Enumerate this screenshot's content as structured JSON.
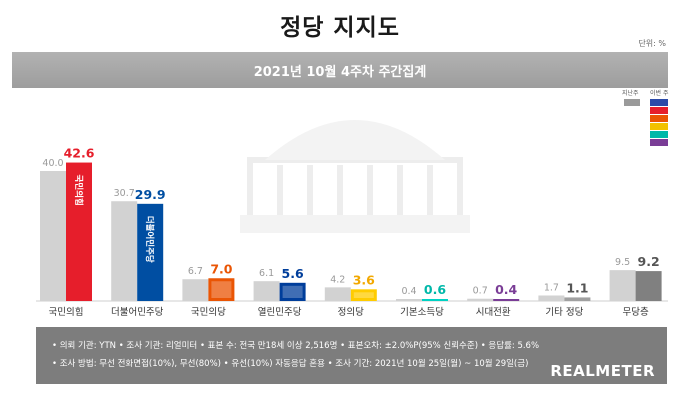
{
  "header": {
    "title": "정당 지지도",
    "unit": "단위: %",
    "subtitle": "2021년 10월 4주차 주간집계"
  },
  "legend": {
    "prev_label": "지난주",
    "curr_label": "이번 주"
  },
  "chart_data": {
    "type": "bar",
    "title": "정당 지지도",
    "subtitle": "2021년 10월 4주차 주간집계",
    "categories": [
      "국민의힘",
      "더불어민주당",
      "국민의당",
      "열린민주당",
      "정의당",
      "기본소득당",
      "시대전환",
      "기타 정당",
      "무당층"
    ],
    "series": [
      {
        "name": "지난주",
        "values": [
          40.0,
          30.7,
          6.7,
          6.1,
          4.2,
          0.4,
          0.7,
          1.7,
          9.5
        ],
        "color": "#d2d2d2"
      },
      {
        "name": "이번 주",
        "values": [
          42.6,
          29.9,
          7.0,
          5.6,
          3.6,
          0.6,
          0.4,
          1.1,
          9.2
        ],
        "colors": [
          "#e61e2b",
          "#004ea2",
          "#ea5504",
          "#003e9b",
          "#ffcc00",
          "#00d2c3",
          "#7a3d96",
          "#a0a0a0",
          "#808080"
        ]
      }
    ],
    "value_label_colors": [
      "#e61e2b",
      "#004ea2",
      "#ea5504",
      "#003e9b",
      "#f2a800",
      "#00b8a9",
      "#7a3d96",
      "#555555",
      "#555555"
    ],
    "prev_label_color": "#9a9a9a",
    "bar_logos": [
      "국민의힘",
      "더불어민주당",
      "국민의당",
      "열린민주당",
      "정의당",
      "",
      "",
      "",
      ""
    ],
    "ylim": [
      0,
      45
    ]
  },
  "legend_swatches": [
    "#2b4aa8",
    "#e61e2b",
    "#ea5504",
    "#f2c200",
    "#00b8a9",
    "#7a3d96"
  ],
  "info": {
    "line1": "• 의뢰 기관: YTN • 조사 기관: 리얼미터 • 표본 수: 전국 만18세 이상 2,516명 • 표본오차: ±2.0%P(95% 신뢰수준) • 응답률: 5.6%",
    "line2": "• 조사 방법: 무선 전화면접(10%), 무선(80%) • 유선(10%) 자동응답 혼용 • 조사 기간: 2021년 10월 25일(월) ~ 10월 29일(금)",
    "logo": "REALMETER"
  }
}
